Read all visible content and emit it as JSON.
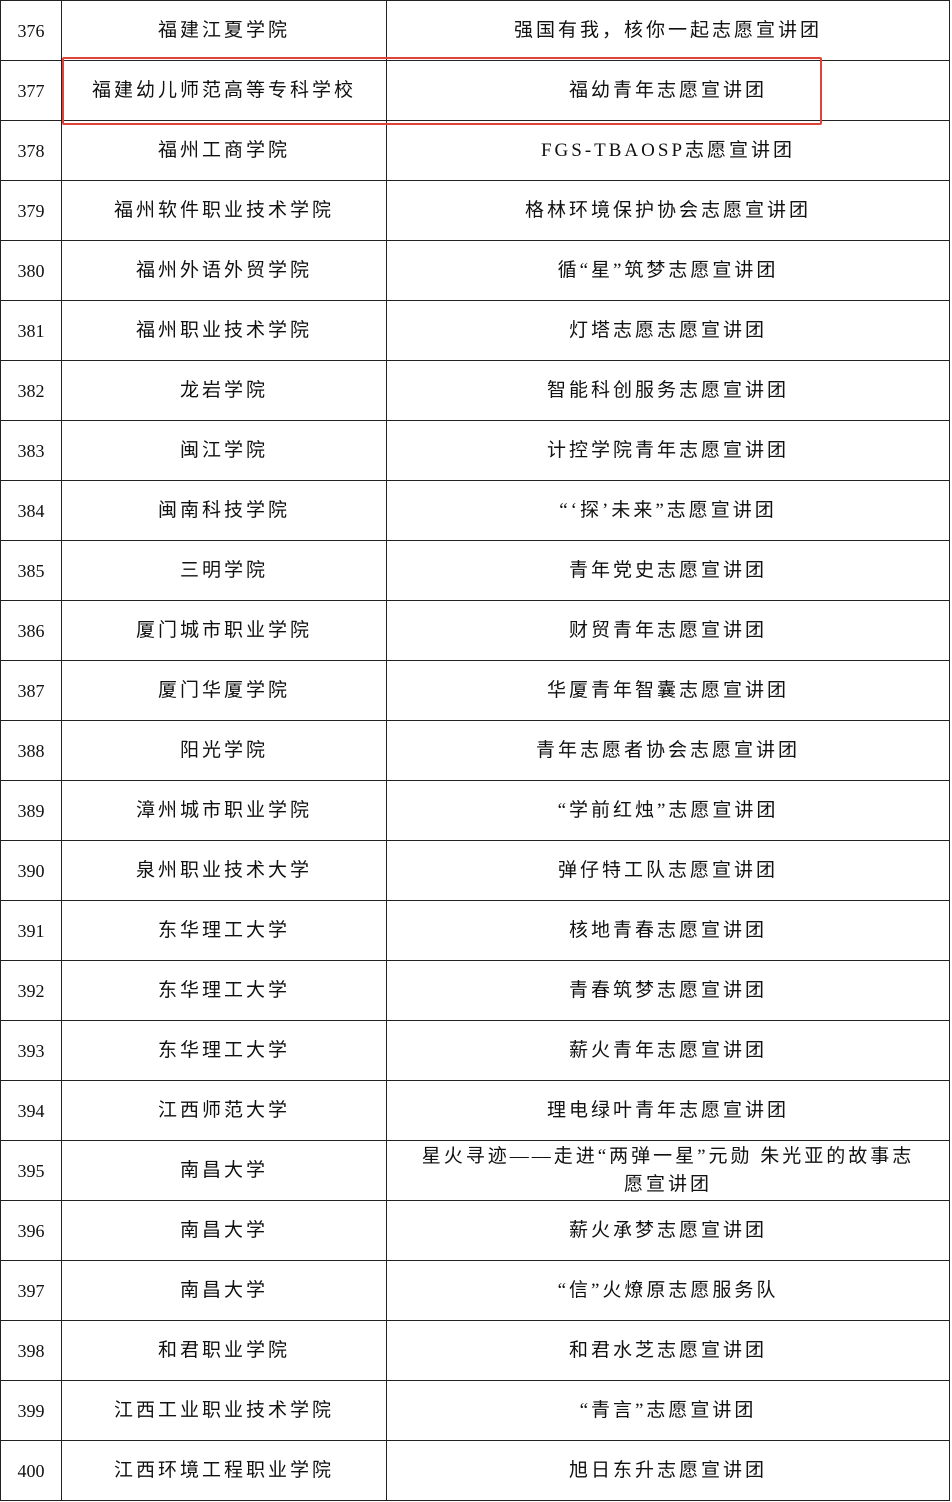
{
  "table": {
    "rows": [
      [
        376,
        "福建江夏学院",
        "强国有我，核你一起志愿宣讲团"
      ],
      [
        377,
        "福建幼儿师范高等专科学校",
        "福幼青年志愿宣讲团"
      ],
      [
        378,
        "福州工商学院",
        "FGS-TBAOSP志愿宣讲团"
      ],
      [
        379,
        "福州软件职业技术学院",
        "格林环境保护协会志愿宣讲团"
      ],
      [
        380,
        "福州外语外贸学院",
        "循“星”筑梦志愿宣讲团"
      ],
      [
        381,
        "福州职业技术学院",
        "灯塔志愿志愿宣讲团"
      ],
      [
        382,
        "龙岩学院",
        "智能科创服务志愿宣讲团"
      ],
      [
        383,
        "闽江学院",
        "计控学院青年志愿宣讲团"
      ],
      [
        384,
        "闽南科技学院",
        "“‘探’未来”志愿宣讲团"
      ],
      [
        385,
        "三明学院",
        "青年党史志愿宣讲团"
      ],
      [
        386,
        "厦门城市职业学院",
        "财贸青年志愿宣讲团"
      ],
      [
        387,
        "厦门华厦学院",
        "华厦青年智囊志愿宣讲团"
      ],
      [
        388,
        "阳光学院",
        "青年志愿者协会志愿宣讲团"
      ],
      [
        389,
        "漳州城市职业学院",
        "“学前红烛”志愿宣讲团"
      ],
      [
        390,
        "泉州职业技术大学",
        "弹仔特工队志愿宣讲团"
      ],
      [
        391,
        "东华理工大学",
        "核地青春志愿宣讲团"
      ],
      [
        392,
        "东华理工大学",
        "青春筑梦志愿宣讲团"
      ],
      [
        393,
        "东华理工大学",
        "薪火青年志愿宣讲团"
      ],
      [
        394,
        "江西师范大学",
        "理电绿叶青年志愿宣讲团"
      ],
      [
        395,
        "南昌大学",
        "星火寻迹——走进“两弹一星”元勋 朱光亚的故事志愿宣讲团"
      ],
      [
        396,
        "南昌大学",
        "薪火承梦志愿宣讲团"
      ],
      [
        397,
        "南昌大学",
        "“信”火燎原志愿服务队"
      ],
      [
        398,
        "和君职业学院",
        "和君水芝志愿宣讲团"
      ],
      [
        399,
        "江西工业职业技术学院",
        "“青言”志愿宣讲团"
      ],
      [
        400,
        "江西环境工程职业学院",
        "旭日东升志愿宣讲团"
      ]
    ]
  }
}
